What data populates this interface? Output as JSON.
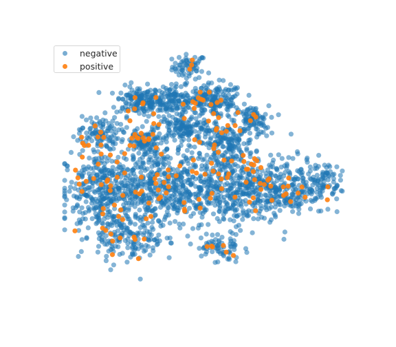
{
  "chart_data": {
    "type": "scatter",
    "title": "",
    "xlabel": "",
    "ylabel": "",
    "axes_visible": false,
    "grid": false,
    "legend_position": "upper-left",
    "xlim": [
      0,
      1
    ],
    "ylim": [
      0,
      1
    ],
    "series": [
      {
        "name": "negative",
        "color": "#1f77b4",
        "alpha": 0.55,
        "approx_point_count": 2400,
        "clusters": [
          {
            "cx": 0.45,
            "cy": 0.93,
            "sx": 0.03,
            "sy": 0.025,
            "n": 60
          },
          {
            "cx": 0.27,
            "cy": 0.79,
            "sx": 0.04,
            "sy": 0.03,
            "n": 140
          },
          {
            "cx": 0.39,
            "cy": 0.79,
            "sx": 0.05,
            "sy": 0.03,
            "n": 150
          },
          {
            "cx": 0.54,
            "cy": 0.79,
            "sx": 0.05,
            "sy": 0.035,
            "n": 170
          },
          {
            "cx": 0.67,
            "cy": 0.71,
            "sx": 0.03,
            "sy": 0.03,
            "n": 90
          },
          {
            "cx": 0.43,
            "cy": 0.68,
            "sx": 0.05,
            "sy": 0.025,
            "n": 130
          },
          {
            "cx": 0.13,
            "cy": 0.66,
            "sx": 0.035,
            "sy": 0.035,
            "n": 90
          },
          {
            "cx": 0.29,
            "cy": 0.62,
            "sx": 0.035,
            "sy": 0.03,
            "n": 90
          },
          {
            "cx": 0.58,
            "cy": 0.62,
            "sx": 0.05,
            "sy": 0.035,
            "n": 150
          },
          {
            "cx": 0.16,
            "cy": 0.42,
            "sx": 0.08,
            "sy": 0.09,
            "n": 400
          },
          {
            "cx": 0.36,
            "cy": 0.44,
            "sx": 0.09,
            "sy": 0.09,
            "n": 420
          },
          {
            "cx": 0.58,
            "cy": 0.43,
            "sx": 0.09,
            "sy": 0.08,
            "n": 360
          },
          {
            "cx": 0.78,
            "cy": 0.44,
            "sx": 0.08,
            "sy": 0.06,
            "n": 260
          },
          {
            "cx": 0.92,
            "cy": 0.47,
            "sx": 0.03,
            "sy": 0.04,
            "n": 70
          },
          {
            "cx": 0.55,
            "cy": 0.19,
            "sx": 0.04,
            "sy": 0.03,
            "n": 60
          },
          {
            "cx": 0.24,
            "cy": 0.22,
            "sx": 0.06,
            "sy": 0.05,
            "n": 120
          }
        ]
      },
      {
        "name": "positive",
        "color": "#ff7f0e",
        "alpha": 0.9,
        "approx_point_count": 200,
        "clusters": [
          {
            "cx": 0.45,
            "cy": 0.93,
            "sx": 0.02,
            "sy": 0.02,
            "n": 3
          },
          {
            "cx": 0.28,
            "cy": 0.78,
            "sx": 0.03,
            "sy": 0.03,
            "n": 8
          },
          {
            "cx": 0.5,
            "cy": 0.79,
            "sx": 0.05,
            "sy": 0.03,
            "n": 14
          },
          {
            "cx": 0.65,
            "cy": 0.72,
            "sx": 0.03,
            "sy": 0.02,
            "n": 6
          },
          {
            "cx": 0.13,
            "cy": 0.65,
            "sx": 0.03,
            "sy": 0.03,
            "n": 8
          },
          {
            "cx": 0.3,
            "cy": 0.63,
            "sx": 0.03,
            "sy": 0.025,
            "n": 14
          },
          {
            "cx": 0.55,
            "cy": 0.66,
            "sx": 0.04,
            "sy": 0.03,
            "n": 8
          },
          {
            "cx": 0.18,
            "cy": 0.42,
            "sx": 0.08,
            "sy": 0.09,
            "n": 30
          },
          {
            "cx": 0.38,
            "cy": 0.43,
            "sx": 0.09,
            "sy": 0.08,
            "n": 30
          },
          {
            "cx": 0.6,
            "cy": 0.48,
            "sx": 0.09,
            "sy": 0.07,
            "n": 30
          },
          {
            "cx": 0.78,
            "cy": 0.42,
            "sx": 0.07,
            "sy": 0.05,
            "n": 18
          },
          {
            "cx": 0.56,
            "cy": 0.19,
            "sx": 0.03,
            "sy": 0.02,
            "n": 6
          },
          {
            "cx": 0.23,
            "cy": 0.22,
            "sx": 0.05,
            "sy": 0.04,
            "n": 10
          }
        ]
      }
    ]
  },
  "legend": {
    "items": [
      {
        "label": "negative",
        "color": "#1f77b4"
      },
      {
        "label": "positive",
        "color": "#ff7f0e"
      }
    ]
  }
}
